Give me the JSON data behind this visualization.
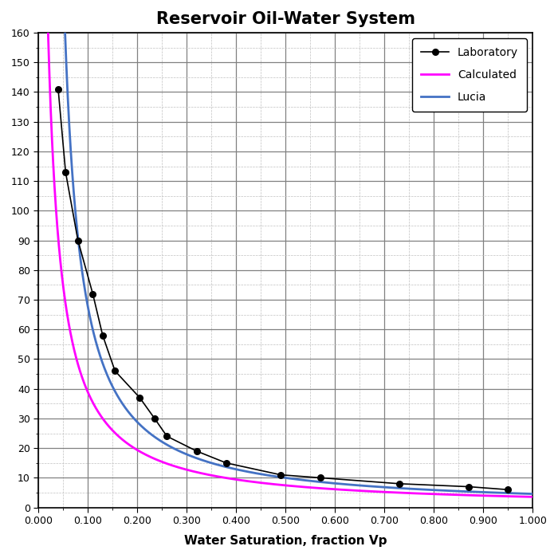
{
  "title": "Reservoir Oil-Water System",
  "xlabel": "Water Saturation, fraction Vp",
  "ylabel": "",
  "xlim": [
    0.0,
    1.0
  ],
  "ylim": [
    0,
    160
  ],
  "yticks": [
    0,
    10,
    20,
    30,
    40,
    50,
    60,
    70,
    80,
    90,
    100,
    110,
    120,
    130,
    140,
    150,
    160
  ],
  "xticks": [
    0.0,
    0.1,
    0.2,
    0.3,
    0.4,
    0.5,
    0.6,
    0.7,
    0.8,
    0.9,
    1.0
  ],
  "lab_sw": [
    0.04,
    0.055,
    0.08,
    0.11,
    0.13,
    0.155,
    0.205,
    0.235,
    0.26,
    0.32,
    0.38,
    0.49,
    0.57,
    0.73,
    0.87,
    0.95
  ],
  "lab_h": [
    141,
    113,
    90,
    72,
    58,
    46,
    37,
    30,
    24,
    19,
    15,
    11,
    10,
    8,
    7,
    6
  ],
  "calc_color": "#FF00FF",
  "lucia_color": "#4472C4",
  "lab_color": "#000000",
  "background_color": "#FFFFFF",
  "grid_major_color": "#808080",
  "grid_minor_color": "#C0C0C0",
  "title_fontsize": 15,
  "label_fontsize": 11,
  "tick_fontsize": 9,
  "legend_fontsize": 10
}
